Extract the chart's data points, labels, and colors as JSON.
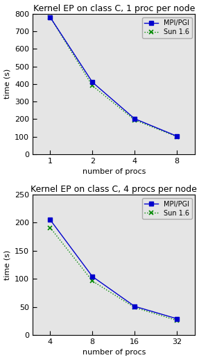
{
  "top": {
    "title": "Kernel EP on class C, 1 proc per node",
    "x": [
      1,
      2,
      4,
      8
    ],
    "mpi_pgi": [
      780,
      410,
      202,
      103
    ],
    "sun16": [
      780,
      390,
      195,
      100
    ],
    "ylim": [
      0,
      800
    ],
    "yticks": [
      0,
      100,
      200,
      300,
      400,
      500,
      600,
      700,
      800
    ],
    "xticks": [
      1,
      2,
      4,
      8
    ],
    "xtick_labels": [
      "1",
      "2",
      "4",
      "8"
    ],
    "xlabel": "number of procs",
    "ylabel": "time (s)"
  },
  "bottom": {
    "title": "Kernel EP on class C, 4 procs per node",
    "x": [
      4,
      8,
      16,
      32
    ],
    "mpi_pgi": [
      205,
      104,
      51,
      29
    ],
    "sun16": [
      191,
      96,
      49,
      26
    ],
    "ylim": [
      0,
      250
    ],
    "yticks": [
      0,
      50,
      100,
      150,
      200,
      250
    ],
    "xticks": [
      4,
      8,
      16,
      32
    ],
    "xtick_labels": [
      "4",
      "8",
      "16",
      "32"
    ],
    "xlabel": "number of procs",
    "ylabel": "time (s)"
  },
  "mpi_color": "#0000cc",
  "sun_color": "#008800",
  "legend_mpi": "MPI/PGI",
  "legend_sun": "Sun 1.6",
  "bg_color": "#e5e5e5",
  "fig_bg": "#ffffff"
}
